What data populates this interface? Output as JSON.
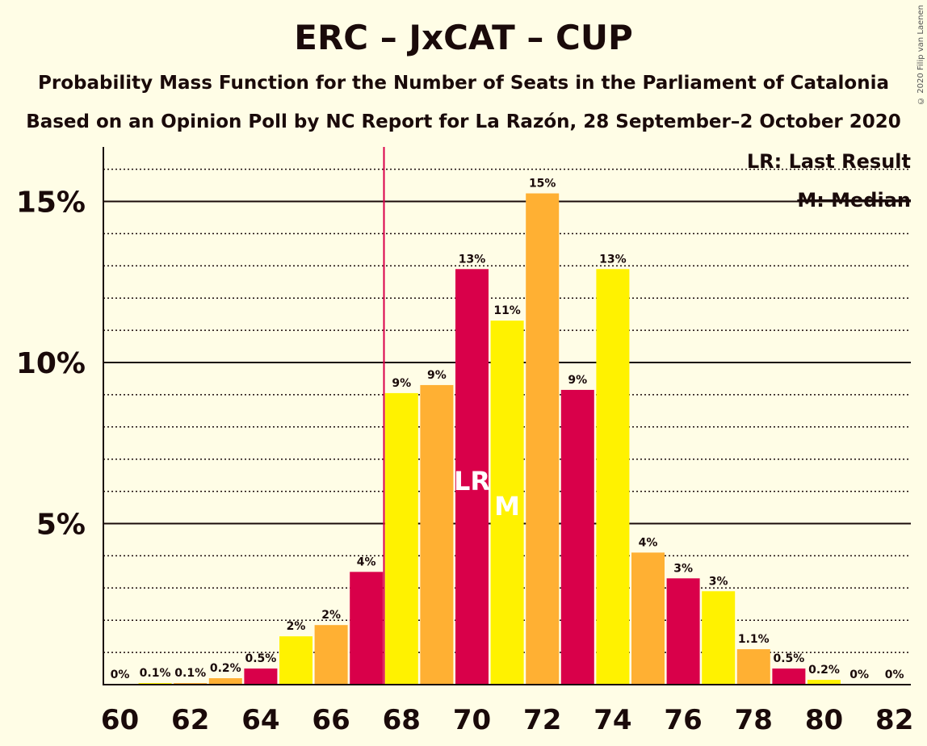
{
  "title": "ERC – JxCAT – CUP",
  "subtitle": "Probability Mass Function for the Number of Seats in the Parliament of Catalonia",
  "subtitle2": "Based on an Opinion Poll by NC Report for La Razón, 28 September–2 October 2020",
  "legend": {
    "last_result": "LR: Last Result",
    "median": "M: Median"
  },
  "copyright": "© 2020 Filip van Laenen",
  "colors": {
    "red": "#D9004A",
    "orange": "#FFB033",
    "yellow": "#FFF200",
    "background": "#FFFDE6",
    "last_result_line": "#D9004A"
  },
  "chart_data": {
    "type": "bar",
    "x": [
      60,
      61,
      62,
      63,
      64,
      65,
      66,
      67,
      68,
      69,
      70,
      71,
      72,
      73,
      74,
      75,
      76,
      77,
      78,
      79,
      80,
      81,
      82
    ],
    "values": [
      0,
      0.05,
      0.05,
      0.2,
      0.5,
      1.5,
      1.85,
      3.5,
      9.05,
      9.3,
      12.9,
      11.3,
      15.25,
      9.15,
      12.9,
      4.1,
      3.3,
      2.9,
      1.1,
      0.5,
      0.15,
      0,
      0
    ],
    "data_labels": [
      "0%",
      "0.1%",
      "0.1%",
      "0.2%",
      "0.5%",
      "2%",
      "2%",
      "4%",
      "9%",
      "9%",
      "13%",
      "11%",
      "15%",
      "9%",
      "13%",
      "4%",
      "3%",
      "3%",
      "1.1%",
      "0.5%",
      "0.2%",
      "0%",
      "0%"
    ],
    "bar_colors": [
      "red",
      "yellow",
      "orange",
      "orange",
      "red",
      "yellow",
      "orange",
      "red",
      "yellow",
      "orange",
      "red",
      "yellow",
      "orange",
      "red",
      "yellow",
      "orange",
      "red",
      "yellow",
      "orange",
      "red",
      "yellow",
      "orange",
      "red"
    ],
    "x_tick_labels": [
      "60",
      "62",
      "64",
      "66",
      "68",
      "70",
      "72",
      "74",
      "76",
      "78",
      "80",
      "82"
    ],
    "x_ticks": [
      60,
      62,
      64,
      66,
      68,
      70,
      72,
      74,
      76,
      78,
      80,
      82
    ],
    "y_ticks": [
      5,
      10,
      15
    ],
    "y_tick_labels": [
      "5%",
      "10%",
      "15%"
    ],
    "ylim": [
      0,
      16.6
    ],
    "minor_gridlines": [
      1,
      2,
      3,
      4,
      6,
      7,
      8,
      9,
      11,
      12,
      13,
      14,
      16
    ],
    "last_result": {
      "seat": 70,
      "label": "LR",
      "line_at": 67.5
    },
    "median": {
      "seat": 71,
      "label": "M"
    },
    "xlabel": "",
    "ylabel": ""
  }
}
